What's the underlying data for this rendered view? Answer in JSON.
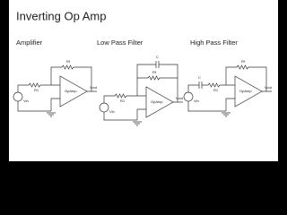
{
  "title": "Inverting Op Amp",
  "panels": [
    {
      "title": "Amplifier",
      "labels": {
        "rf": "Rf",
        "r1": "R1",
        "vin": "Vin",
        "vout": "Vout",
        "opamp": "OpAmp"
      }
    },
    {
      "title": "Low Pass Filter",
      "labels": {
        "c": "C",
        "rf": "Rf",
        "r1": "R1",
        "vin": "Vin",
        "vout": "Vout",
        "opamp": "OpAmp"
      }
    },
    {
      "title": "High Pass Filter",
      "labels": {
        "c": "C",
        "rf": "Rf",
        "r1": "R1",
        "vin": "Vin",
        "vout": "Vout",
        "opamp": "OpAmp"
      }
    }
  ]
}
